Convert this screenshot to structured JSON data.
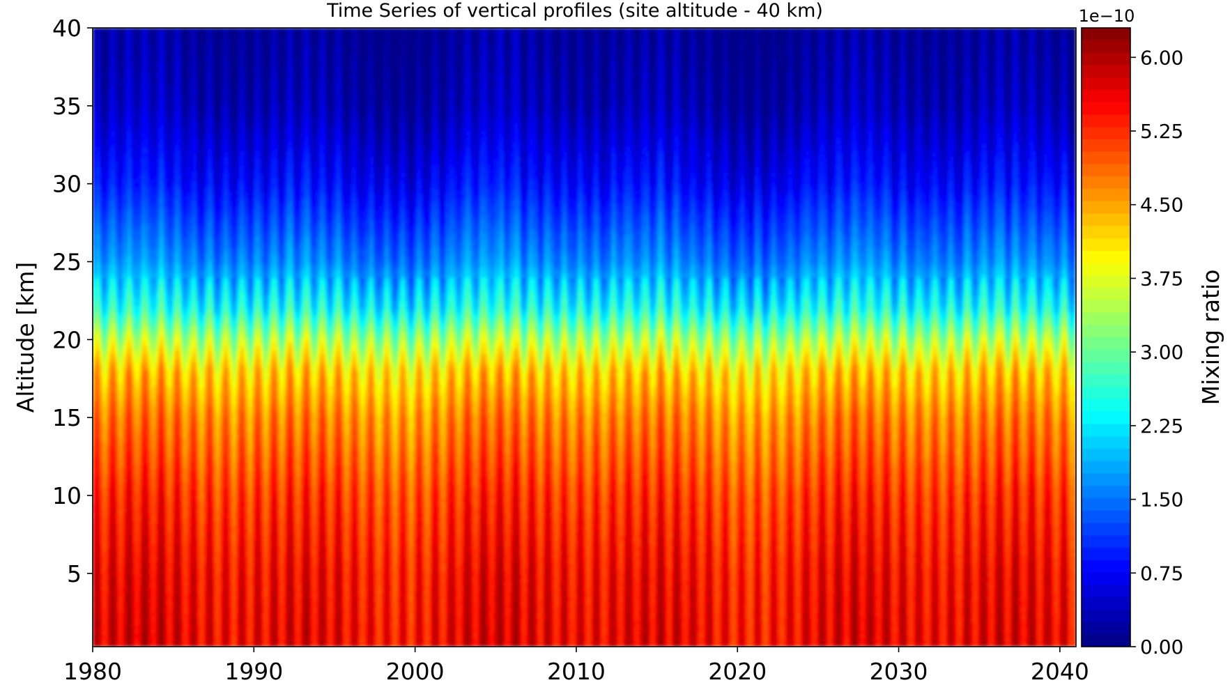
{
  "chart_data": {
    "type": "heatmap",
    "title": "Time Series of vertical profiles (site altitude - 40 km)",
    "xlabel": "",
    "ylabel": "Altitude [km]",
    "xlim": [
      1980,
      2041
    ],
    "ylim": [
      0.3,
      40
    ],
    "x_ticks": [
      "1980",
      "1990",
      "2000",
      "2010",
      "2020",
      "2030",
      "2040"
    ],
    "x_tick_values": [
      1980,
      1990,
      2000,
      2010,
      2020,
      2030,
      2040
    ],
    "y_ticks": [
      "5",
      "10",
      "15",
      "20",
      "25",
      "30",
      "35",
      "40"
    ],
    "y_tick_values": [
      5,
      10,
      15,
      20,
      25,
      30,
      35,
      40
    ],
    "colorbar": {
      "label": "Mixing ratio",
      "offset_text": "1e−10",
      "range": [
        0,
        6.3
      ],
      "tick_labels": [
        "0.00",
        "0.75",
        "1.50",
        "2.25",
        "3.00",
        "3.75",
        "4.50",
        "5.25",
        "6.00"
      ],
      "tick_values": [
        0,
        0.75,
        1.5,
        2.25,
        3.0,
        3.75,
        4.5,
        5.25,
        6.0
      ],
      "colormap": "jet",
      "levels": 50
    },
    "seasonal_cycle_period_years": 1,
    "profile_approx": [
      {
        "altitude_km": 1,
        "value": 5.6
      },
      {
        "altitude_km": 5,
        "value": 5.5
      },
      {
        "altitude_km": 10,
        "value": 5.2
      },
      {
        "altitude_km": 15,
        "value": 4.7
      },
      {
        "altitude_km": 18,
        "value": 4.2
      },
      {
        "altitude_km": 20,
        "value": 3.4
      },
      {
        "altitude_km": 22,
        "value": 2.4
      },
      {
        "altitude_km": 25,
        "value": 1.6
      },
      {
        "altitude_km": 30,
        "value": 0.8
      },
      {
        "altitude_km": 35,
        "value": 0.3
      },
      {
        "altitude_km": 40,
        "value": 0.1
      }
    ]
  }
}
